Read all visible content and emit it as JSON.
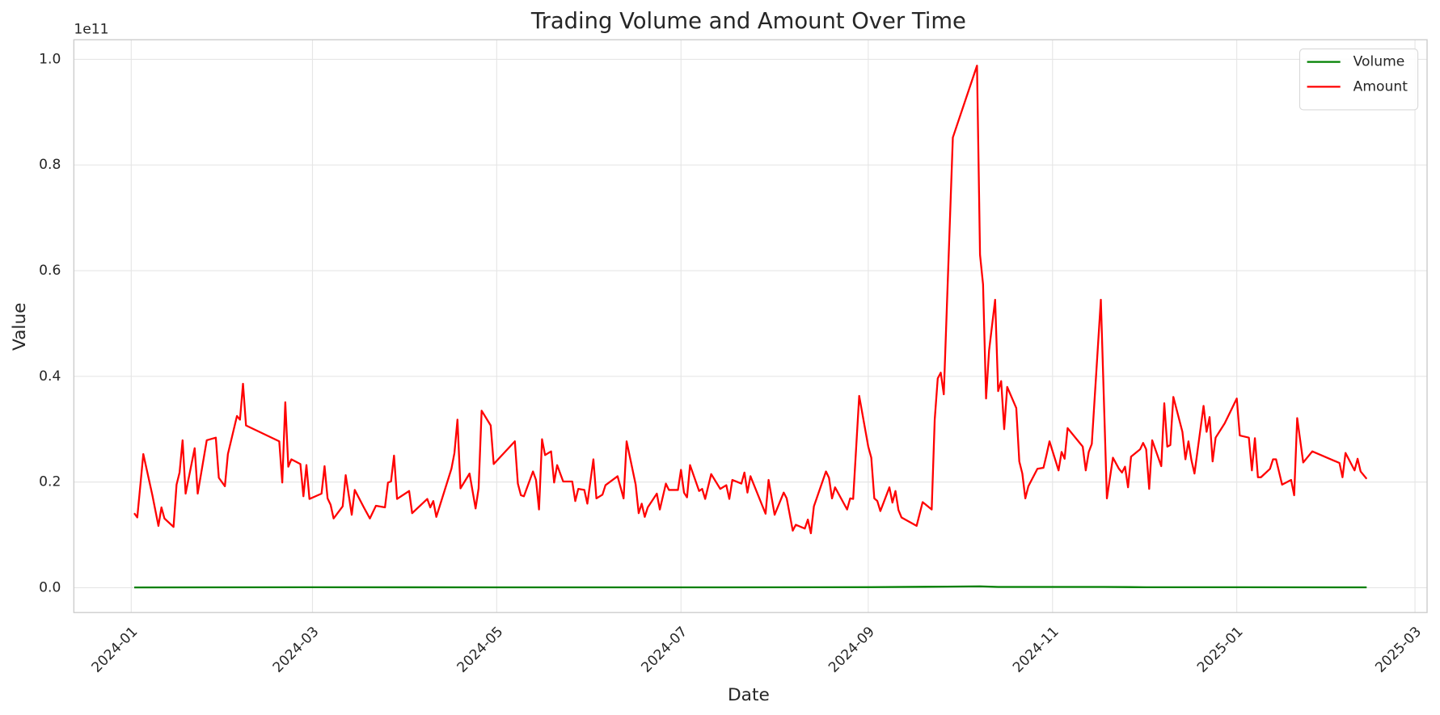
{
  "chart_data": {
    "type": "line",
    "title": "Trading Volume and Amount Over Time",
    "x_label": "Date",
    "y_label": "Value",
    "y_offset_label": "1e11",
    "xlim": [
      "2023-12-13",
      "2025-03-05"
    ],
    "xticks": [
      "2024-01",
      "2024-03",
      "2024-05",
      "2024-07",
      "2024-09",
      "2024-11",
      "2025-01",
      "2025-03"
    ],
    "ylim": [
      -0.047,
      1.037
    ],
    "yticks": [
      {
        "value": 0,
        "label": "0.0"
      },
      0.2,
      0.4,
      0.6,
      0.8,
      {
        "value": 1,
        "label": "1.0"
      }
    ],
    "grid": true,
    "legend": "upper right",
    "series": [
      {
        "name": "Volume",
        "color": "green",
        "x": [
          "2024-01-02",
          "2024-03-01",
          "2024-05-01",
          "2024-07-01",
          "2024-09-02",
          "2024-09-27",
          "2024-10-08",
          "2024-10-14",
          "2024-11-18",
          "2024-12-02",
          "2025-01-02",
          "2025-02-13"
        ],
        "values": [
          0.0005,
          0.0008,
          0.0007,
          0.0006,
          0.001,
          0.002,
          0.0025,
          0.0015,
          0.0015,
          0.0009,
          0.0008,
          0.0006
        ]
      },
      {
        "name": "Amount",
        "color": "red",
        "x": [
          "2024-01-02",
          "2024-01-03",
          "2024-01-05",
          "2024-01-08",
          "2024-01-10",
          "2024-01-11",
          "2024-01-12",
          "2024-01-15",
          "2024-01-16",
          "2024-01-17",
          "2024-01-18",
          "2024-01-19",
          "2024-01-22",
          "2024-01-23",
          "2024-01-26",
          "2024-01-29",
          "2024-01-30",
          "2024-02-01",
          "2024-02-02",
          "2024-02-05",
          "2024-02-06",
          "2024-02-07",
          "2024-02-08",
          "2024-02-19",
          "2024-02-20",
          "2024-02-21",
          "2024-02-22",
          "2024-02-23",
          "2024-02-26",
          "2024-02-27",
          "2024-02-28",
          "2024-02-29",
          "2024-03-04",
          "2024-03-05",
          "2024-03-06",
          "2024-03-07",
          "2024-03-08",
          "2024-03-11",
          "2024-03-12",
          "2024-03-14",
          "2024-03-15",
          "2024-03-18",
          "2024-03-20",
          "2024-03-22",
          "2024-03-25",
          "2024-03-26",
          "2024-03-27",
          "2024-03-28",
          "2024-03-29",
          "2024-04-02",
          "2024-04-03",
          "2024-04-08",
          "2024-04-09",
          "2024-04-10",
          "2024-04-11",
          "2024-04-16",
          "2024-04-17",
          "2024-04-18",
          "2024-04-19",
          "2024-04-22",
          "2024-04-24",
          "2024-04-25",
          "2024-04-26",
          "2024-04-29",
          "2024-04-30",
          "2024-05-07",
          "2024-05-08",
          "2024-05-09",
          "2024-05-10",
          "2024-05-13",
          "2024-05-14",
          "2024-05-15",
          "2024-05-16",
          "2024-05-17",
          "2024-05-19",
          "2024-05-20",
          "2024-05-21",
          "2024-05-23",
          "2024-05-26",
          "2024-05-27",
          "2024-05-28",
          "2024-05-30",
          "2024-05-31",
          "2024-06-02",
          "2024-06-03",
          "2024-06-05",
          "2024-06-06",
          "2024-06-10",
          "2024-06-12",
          "2024-06-13",
          "2024-06-16",
          "2024-06-17",
          "2024-06-18",
          "2024-06-19",
          "2024-06-20",
          "2024-06-23",
          "2024-06-24",
          "2024-06-26",
          "2024-06-27",
          "2024-06-30",
          "2024-07-01",
          "2024-07-02",
          "2024-07-03",
          "2024-07-04",
          "2024-07-07",
          "2024-07-08",
          "2024-07-09",
          "2024-07-11",
          "2024-07-14",
          "2024-07-16",
          "2024-07-17",
          "2024-07-18",
          "2024-07-21",
          "2024-07-22",
          "2024-07-23",
          "2024-07-24",
          "2024-07-29",
          "2024-07-30",
          "2024-08-01",
          "2024-08-04",
          "2024-08-05",
          "2024-08-07",
          "2024-08-08",
          "2024-08-11",
          "2024-08-12",
          "2024-08-13",
          "2024-08-14",
          "2024-08-18",
          "2024-08-19",
          "2024-08-20",
          "2024-08-21",
          "2024-08-25",
          "2024-08-26",
          "2024-08-27",
          "2024-08-29",
          "2024-09-01",
          "2024-09-02",
          "2024-09-03",
          "2024-09-04",
          "2024-09-05",
          "2024-09-08",
          "2024-09-09",
          "2024-09-10",
          "2024-09-11",
          "2024-09-12",
          "2024-09-17",
          "2024-09-19",
          "2024-09-22",
          "2024-09-23",
          "2024-09-24",
          "2024-09-25",
          "2024-09-26",
          "2024-09-29",
          "2024-10-07",
          "2024-10-08",
          "2024-10-09",
          "2024-10-10",
          "2024-10-11",
          "2024-10-13",
          "2024-10-14",
          "2024-10-15",
          "2024-10-16",
          "2024-10-17",
          "2024-10-20",
          "2024-10-21",
          "2024-10-22",
          "2024-10-23",
          "2024-10-24",
          "2024-10-27",
          "2024-10-29",
          "2024-10-30",
          "2024-10-31",
          "2024-11-03",
          "2024-11-04",
          "2024-11-05",
          "2024-11-06",
          "2024-11-10",
          "2024-11-11",
          "2024-11-12",
          "2024-11-13",
          "2024-11-14",
          "2024-11-17",
          "2024-11-19",
          "2024-11-21",
          "2024-11-23",
          "2024-11-24",
          "2024-11-25",
          "2024-11-26",
          "2024-11-27",
          "2024-11-30",
          "2024-12-01",
          "2024-12-02",
          "2024-12-03",
          "2024-12-04",
          "2024-12-07",
          "2024-12-08",
          "2024-12-09",
          "2024-12-10",
          "2024-12-11",
          "2024-12-14",
          "2024-12-15",
          "2024-12-16",
          "2024-12-17",
          "2024-12-18",
          "2024-12-21",
          "2024-12-22",
          "2024-12-23",
          "2024-12-24",
          "2024-12-25",
          "2024-12-28",
          "2025-01-01",
          "2025-01-02",
          "2025-01-05",
          "2025-01-06",
          "2025-01-07",
          "2025-01-08",
          "2025-01-09",
          "2025-01-12",
          "2025-01-13",
          "2025-01-14",
          "2025-01-16",
          "2025-01-19",
          "2025-01-20",
          "2025-01-21",
          "2025-01-23",
          "2025-01-26",
          "2025-02-04",
          "2025-02-05",
          "2025-02-06",
          "2025-02-09",
          "2025-02-10",
          "2025-02-11",
          "2025-02-13"
        ],
        "values": [
          0.141,
          0.133,
          0.253,
          0.175,
          0.117,
          0.152,
          0.131,
          0.115,
          0.195,
          0.218,
          0.279,
          0.178,
          0.264,
          0.178,
          0.279,
          0.284,
          0.208,
          0.192,
          0.253,
          0.325,
          0.318,
          0.386,
          0.307,
          0.277,
          0.199,
          0.351,
          0.229,
          0.243,
          0.234,
          0.173,
          0.232,
          0.168,
          0.178,
          0.23,
          0.169,
          0.157,
          0.131,
          0.154,
          0.213,
          0.138,
          0.185,
          0.152,
          0.131,
          0.155,
          0.152,
          0.199,
          0.201,
          0.25,
          0.168,
          0.183,
          0.141,
          0.168,
          0.152,
          0.164,
          0.134,
          0.225,
          0.255,
          0.318,
          0.188,
          0.216,
          0.15,
          0.188,
          0.335,
          0.307,
          0.234,
          0.277,
          0.197,
          0.175,
          0.173,
          0.22,
          0.204,
          0.148,
          0.281,
          0.251,
          0.258,
          0.199,
          0.232,
          0.201,
          0.201,
          0.164,
          0.187,
          0.185,
          0.159,
          0.243,
          0.169,
          0.176,
          0.194,
          0.211,
          0.169,
          0.277,
          0.195,
          0.141,
          0.159,
          0.134,
          0.152,
          0.178,
          0.148,
          0.197,
          0.185,
          0.185,
          0.223,
          0.18,
          0.171,
          0.232,
          0.183,
          0.187,
          0.168,
          0.215,
          0.187,
          0.194,
          0.168,
          0.204,
          0.197,
          0.218,
          0.18,
          0.211,
          0.14,
          0.204,
          0.138,
          0.18,
          0.169,
          0.108,
          0.119,
          0.112,
          0.129,
          0.103,
          0.154,
          0.22,
          0.208,
          0.169,
          0.19,
          0.148,
          0.169,
          0.168,
          0.363,
          0.267,
          0.246,
          0.169,
          0.164,
          0.145,
          0.19,
          0.161,
          0.183,
          0.147,
          0.133,
          0.117,
          0.162,
          0.148,
          0.318,
          0.396,
          0.407,
          0.366,
          0.852,
          0.988,
          0.63,
          0.574,
          0.358,
          0.449,
          0.545,
          0.372,
          0.391,
          0.3,
          0.38,
          0.34,
          0.239,
          0.216,
          0.169,
          0.192,
          0.225,
          0.227,
          0.251,
          0.277,
          0.222,
          0.257,
          0.244,
          0.302,
          0.274,
          0.267,
          0.222,
          0.257,
          0.272,
          0.545,
          0.169,
          0.246,
          0.225,
          0.218,
          0.229,
          0.19,
          0.248,
          0.262,
          0.274,
          0.262,
          0.187,
          0.279,
          0.23,
          0.349,
          0.267,
          0.27,
          0.361,
          0.295,
          0.243,
          0.277,
          0.241,
          0.216,
          0.344,
          0.295,
          0.323,
          0.239,
          0.284,
          0.311,
          0.358,
          0.288,
          0.284,
          0.222,
          0.283,
          0.209,
          0.209,
          0.225,
          0.243,
          0.243,
          0.195,
          0.204,
          0.175,
          0.321,
          0.237,
          0.258,
          0.236,
          0.209,
          0.255,
          0.222,
          0.244,
          0.22,
          0.206
        ]
      }
    ]
  }
}
